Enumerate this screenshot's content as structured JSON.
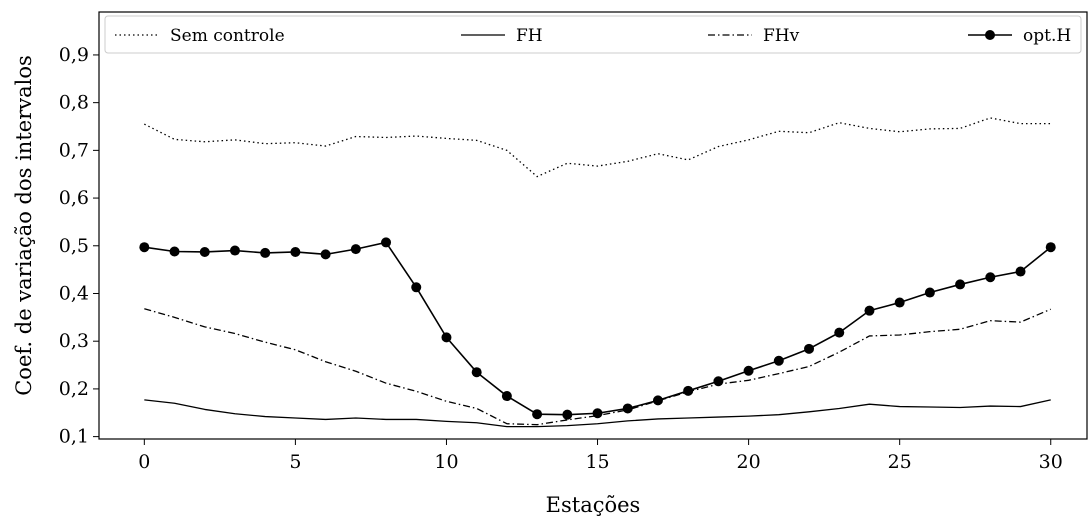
{
  "chart_data": {
    "type": "line",
    "title": "",
    "xlabel": "Estações",
    "ylabel": "Coef. de variação dos intervalos",
    "xlim": [
      -1.5,
      31.2
    ],
    "ylim": [
      0.095,
      0.99
    ],
    "xticks": [
      0,
      5,
      10,
      15,
      20,
      25,
      30
    ],
    "xtick_labels": [
      "0",
      "5",
      "10",
      "15",
      "20",
      "25",
      "30"
    ],
    "yticks": [
      0.1,
      0.2,
      0.3,
      0.4,
      0.5,
      0.6,
      0.7,
      0.8,
      0.9
    ],
    "ytick_labels": [
      "0,1",
      "0,2",
      "0,3",
      "0,4",
      "0,5",
      "0,6",
      "0,7",
      "0,8",
      "0,9"
    ],
    "grid": false,
    "legend_position": "top",
    "x": [
      0,
      1,
      2,
      3,
      4,
      5,
      6,
      7,
      8,
      9,
      10,
      11,
      12,
      13,
      14,
      15,
      16,
      17,
      18,
      19,
      20,
      21,
      22,
      23,
      24,
      25,
      26,
      27,
      28,
      29,
      30
    ],
    "series": [
      {
        "name": "Sem controle",
        "style": "dotted",
        "marker": "none",
        "color": "#000000",
        "values": [
          0.755,
          0.723,
          0.718,
          0.722,
          0.714,
          0.716,
          0.709,
          0.729,
          0.727,
          0.73,
          0.725,
          0.721,
          0.7,
          0.645,
          0.673,
          0.667,
          0.677,
          0.693,
          0.68,
          0.708,
          0.722,
          0.74,
          0.737,
          0.758,
          0.746,
          0.739,
          0.745,
          0.746,
          0.768,
          0.756,
          0.756
        ]
      },
      {
        "name": "FH",
        "style": "solid",
        "marker": "none",
        "color": "#000000",
        "values": [
          0.177,
          0.17,
          0.157,
          0.148,
          0.142,
          0.139,
          0.136,
          0.139,
          0.136,
          0.136,
          0.132,
          0.129,
          0.121,
          0.121,
          0.123,
          0.127,
          0.133,
          0.137,
          0.139,
          0.141,
          0.143,
          0.146,
          0.152,
          0.159,
          0.168,
          0.163,
          0.162,
          0.161,
          0.164,
          0.163,
          0.177
        ]
      },
      {
        "name": "FHv",
        "style": "dashdot",
        "marker": "none",
        "color": "#000000",
        "values": [
          0.368,
          0.35,
          0.33,
          0.316,
          0.298,
          0.282,
          0.257,
          0.237,
          0.212,
          0.195,
          0.174,
          0.159,
          0.127,
          0.125,
          0.135,
          0.144,
          0.156,
          0.175,
          0.194,
          0.21,
          0.218,
          0.232,
          0.247,
          0.277,
          0.311,
          0.313,
          0.32,
          0.325,
          0.343,
          0.34,
          0.367
        ]
      },
      {
        "name": "opt.H",
        "style": "solid",
        "marker": "circle",
        "color": "#000000",
        "values": [
          0.497,
          0.488,
          0.487,
          0.49,
          0.485,
          0.487,
          0.482,
          0.493,
          0.507,
          0.413,
          0.308,
          0.235,
          0.185,
          0.147,
          0.146,
          0.149,
          0.159,
          0.176,
          0.196,
          0.216,
          0.238,
          0.259,
          0.284,
          0.318,
          0.364,
          0.381,
          0.402,
          0.419,
          0.434,
          0.446,
          0.497
        ]
      }
    ]
  }
}
